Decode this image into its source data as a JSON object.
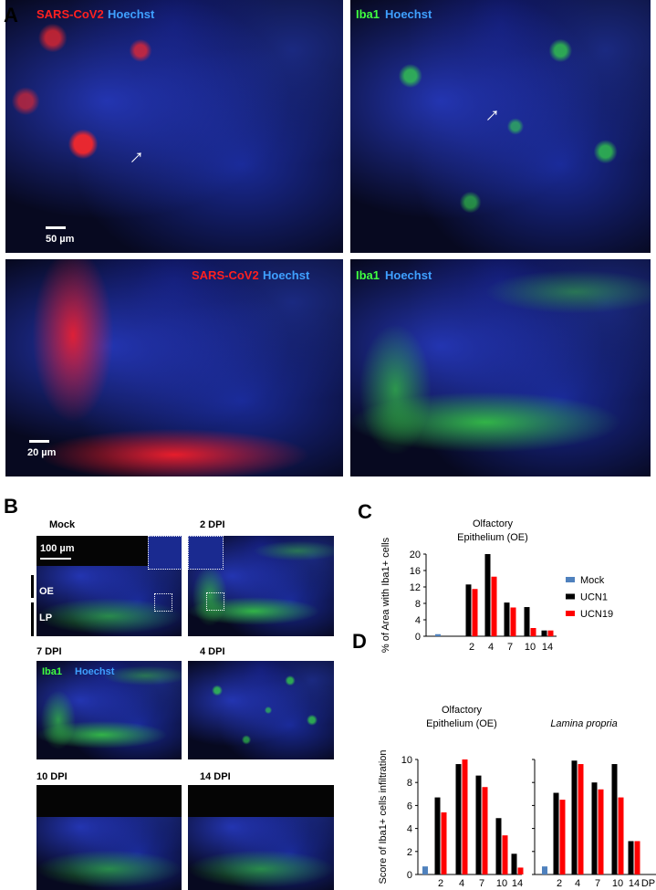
{
  "panel_labels": {
    "a": "A",
    "b": "B",
    "c": "C",
    "d": "D"
  },
  "panel_a": {
    "top_left": {
      "stain1": "SARS-CoV2",
      "stain2": "Hoechst",
      "scale": "50 µm"
    },
    "top_right": {
      "stain1": "Iba1",
      "stain2": "Hoechst"
    },
    "bottom_left": {
      "stain1": "SARS-CoV2",
      "stain2": "Hoechst",
      "scale": "20 µm"
    },
    "bottom_right": {
      "stain1": "Iba1",
      "stain2": "Hoechst"
    },
    "colors": {
      "sars": "#ff2020",
      "hoechst": "#3fa0ff",
      "iba1": "#40ff40"
    }
  },
  "panel_b": {
    "labels": [
      "Mock",
      "2 DPI",
      "7 DPI",
      "4 DPI",
      "10 DPI",
      "14 DPI"
    ],
    "scale": "100 µm",
    "oe": "OE",
    "lp": "LP",
    "stain1": "Iba1",
    "stain2": "Hoechst"
  },
  "chart_data": [
    {
      "type": "bar",
      "title": "Olfactory Epithelium (OE)",
      "ylabel": "% of Area with Iba1+ cells",
      "xlabel": "",
      "ylim": [
        0,
        20
      ],
      "yticks": [
        0,
        4,
        8,
        12,
        16,
        20
      ],
      "categories": [
        "2",
        "4",
        "7",
        "10",
        "14"
      ],
      "legend": {
        "placement": "right",
        "entries": [
          "Mock",
          "UCN1",
          "UCN19"
        ]
      },
      "mock": 0.5,
      "series": [
        {
          "name": "UCN1",
          "color": "#000000",
          "values": [
            12.6,
            20,
            8.2,
            7.1,
            1.4
          ]
        },
        {
          "name": "UCN19",
          "color": "#ff0000",
          "values": [
            11.5,
            14.5,
            7.0,
            2.0,
            1.4
          ]
        }
      ],
      "mock_color": "#4f81bd"
    },
    {
      "type": "bar",
      "title": "Olfactory Epithelium (OE)",
      "ylabel": "Score of Iba1+ cells infiltration",
      "ylim": [
        0,
        10
      ],
      "yticks": [
        0,
        2,
        4,
        6,
        8,
        10
      ],
      "categories": [
        "2",
        "4",
        "7",
        "10",
        "14"
      ],
      "mock": 0.7,
      "series": [
        {
          "name": "UCN1",
          "color": "#000000",
          "values": [
            6.7,
            9.6,
            8.6,
            4.9,
            1.8
          ]
        },
        {
          "name": "UCN19",
          "color": "#ff0000",
          "values": [
            5.4,
            10,
            7.6,
            3.4,
            0.6
          ]
        }
      ],
      "mock_color": "#4f81bd"
    },
    {
      "type": "bar",
      "title": "Lamina propria",
      "xlabel": "DPI",
      "ylim": [
        0,
        10
      ],
      "categories": [
        "2",
        "4",
        "7",
        "10",
        "14"
      ],
      "mock": 0.7,
      "series": [
        {
          "name": "UCN1",
          "color": "#000000",
          "values": [
            7.1,
            9.9,
            8.0,
            9.6,
            2.9
          ]
        },
        {
          "name": "UCN19",
          "color": "#ff0000",
          "values": [
            6.5,
            9.6,
            7.4,
            6.7,
            2.9
          ]
        }
      ],
      "mock_color": "#4f81bd"
    }
  ]
}
